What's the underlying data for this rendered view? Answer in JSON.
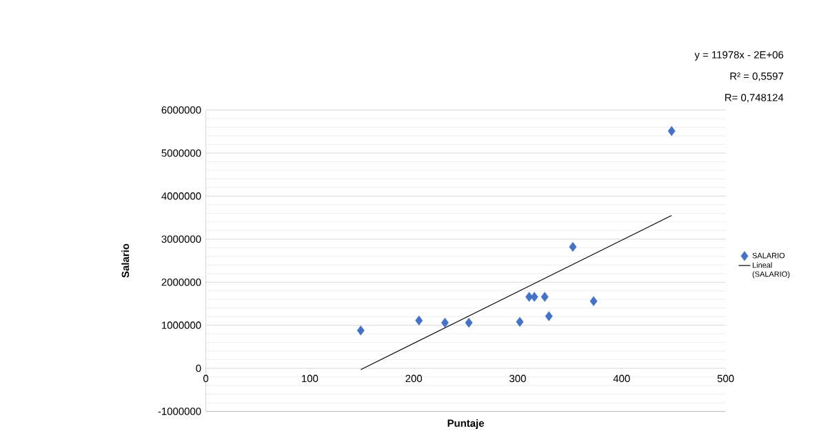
{
  "chart_data": {
    "type": "scatter",
    "xlabel": "Puntaje",
    "ylabel": "Salario",
    "annotations": [
      "y = 11978x - 2E+06",
      "R² = 0,5597",
      "R= 0,748124"
    ],
    "xlim": [
      0,
      500
    ],
    "xticks": [
      0,
      100,
      200,
      300,
      400,
      500
    ],
    "ylim": [
      -1000000,
      6000000
    ],
    "yticks": [
      -1000000,
      0,
      1000000,
      2000000,
      3000000,
      4000000,
      5000000,
      6000000
    ],
    "grid": "y",
    "legend": "right",
    "marker": "diamond",
    "series": [
      {
        "name": "SALARIO",
        "color": "#4472c4",
        "x": [
          149,
          205,
          230,
          253,
          302,
          311,
          316,
          326,
          330,
          353,
          373,
          448
        ],
        "values": [
          880000,
          1110000,
          1060000,
          1060000,
          1080000,
          1660000,
          1660000,
          1660000,
          1210000,
          2820000,
          1560000,
          5510000
        ]
      },
      {
        "name": "Lineal (SALARIO)",
        "type": "line",
        "color": "#000000",
        "marker": "none",
        "x": [
          149,
          448
        ],
        "values": [
          -30000,
          3550000
        ]
      }
    ]
  }
}
